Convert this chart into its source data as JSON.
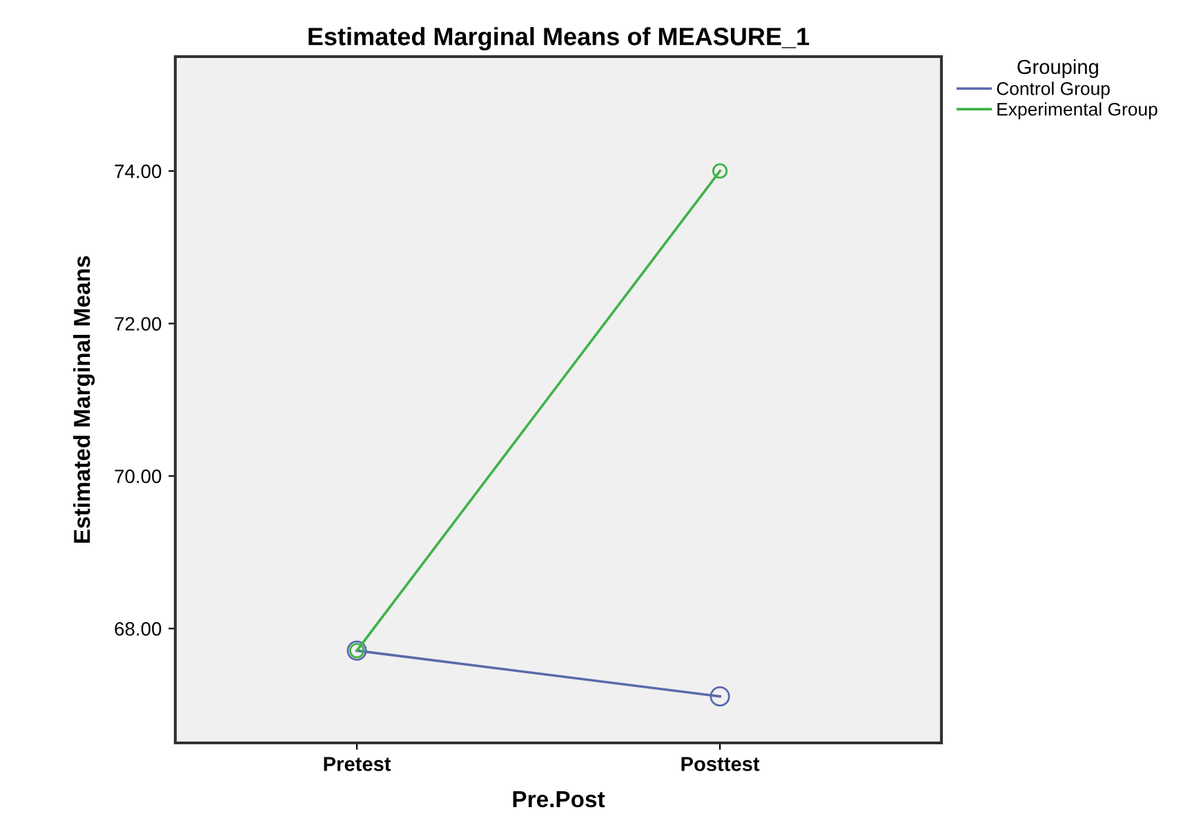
{
  "chart_data": {
    "type": "line",
    "title": "Estimated Marginal Means of MEASURE_1",
    "xlabel": "Pre.Post",
    "ylabel": "Estimated Marginal Means",
    "legend_title": "Grouping",
    "categories": [
      "Pretest",
      "Posttest"
    ],
    "series": [
      {
        "name": "Control Group",
        "color": "#5a6bab",
        "values": [
          67.71,
          67.11
        ]
      },
      {
        "name": "Experimental Group",
        "color": "#3fb24a",
        "values": [
          67.71,
          74.0
        ]
      }
    ],
    "ylim": [
      66.5,
      75.5
    ],
    "yticks": [
      {
        "value": 68,
        "label": "68.00"
      },
      {
        "value": 70,
        "label": "70.00"
      },
      {
        "value": 72,
        "label": "72.00"
      },
      {
        "value": 74,
        "label": "74.00"
      }
    ],
    "grid": false,
    "legend": "top right",
    "marker": "circle",
    "line_style": "solid"
  }
}
